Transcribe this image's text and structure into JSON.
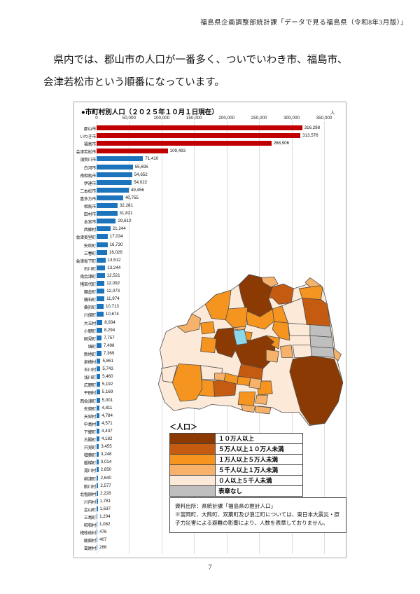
{
  "page": {
    "header": "福島県企画調整部統計課「データで見る福島県（令和8年3月版）」",
    "paragraph_line1": "県内では、郡山市の人口が一番多く、ついでいわき市、福島市、",
    "paragraph_line2": "会津若松市という順番になっています。",
    "page_number": "7"
  },
  "chart_data": {
    "type": "bar",
    "title": "●市町村別人口（２０２５年１０月１日現在）",
    "unit_label": "人",
    "orientation": "horizontal",
    "xlim": [
      0,
      350000
    ],
    "x_ticks": [
      "0",
      "50,000",
      "100,000",
      "150,000",
      "200,000",
      "250,000",
      "300,000",
      "350,000"
    ],
    "grid": true,
    "highlight_color": "#C00000",
    "default_color": "#1B74BC",
    "highlight_count": 4,
    "categories": [
      "郡山市",
      "いわき市",
      "福島市",
      "会津若松市",
      "須賀川市",
      "白河市",
      "南相馬市",
      "伊達市",
      "二本松市",
      "喜多方市",
      "相馬市",
      "田村市",
      "本宮市",
      "西郷村",
      "会津美里町",
      "矢吹町",
      "三春町",
      "会津坂下町",
      "石川町",
      "南会津町",
      "猪苗代町",
      "棚倉町",
      "鏡石町",
      "桑折町",
      "川俣町",
      "大玉村",
      "小野町",
      "国見町",
      "塙町",
      "新地町",
      "泉崎村",
      "玉川村",
      "浅川町",
      "広野町",
      "平田村",
      "西会津町",
      "矢祭町",
      "天栄村",
      "中島村",
      "下郷町",
      "古殿町",
      "只見町",
      "楢葉町",
      "磐梯町",
      "湯川村",
      "柳津町",
      "鮫川村",
      "北塩原村",
      "川内村",
      "金山町",
      "三島町",
      "昭和村",
      "檜枝岐村",
      "飯舘村",
      "葛尾村"
    ],
    "values": [
      316298,
      313576,
      268906,
      109493,
      71410,
      55695,
      54652,
      54022,
      49456,
      40755,
      32281,
      31821,
      29610,
      21244,
      17034,
      16730,
      16026,
      13512,
      13244,
      12521,
      12092,
      12073,
      11974,
      10713,
      10674,
      8934,
      8294,
      7757,
      7498,
      7369,
      5861,
      5743,
      5460,
      5192,
      5169,
      5001,
      4811,
      4784,
      4571,
      4437,
      4182,
      3455,
      3248,
      3014,
      2850,
      2640,
      2577,
      2228,
      1781,
      1637,
      1204,
      1082,
      476,
      407,
      266
    ]
  },
  "legend": {
    "title": "＜人口＞",
    "items": [
      {
        "label": "１０万人以上",
        "color": "#8C3A03"
      },
      {
        "label": "５万人以上１０万人未満",
        "color": "#C55A11"
      },
      {
        "label": "１万人以上５万人未満",
        "color": "#F5941F"
      },
      {
        "label": "５千人以上１万人未満",
        "color": "#F6B26B"
      },
      {
        "label": "０人以上５千人未満",
        "color": "#FCE9D8"
      },
      {
        "label": "表章なし",
        "color": "#BFBFBF"
      }
    ]
  },
  "map": {
    "lake_color": "#8CD7EA"
  },
  "note": {
    "source": "資料出所：県統計課「福島県の推計人口」",
    "caveat": "※富岡町、大熊町、双葉町及び浪江町については、東日本大震災・原子力災害による避難の影響により、人数を表章しておりません。"
  }
}
